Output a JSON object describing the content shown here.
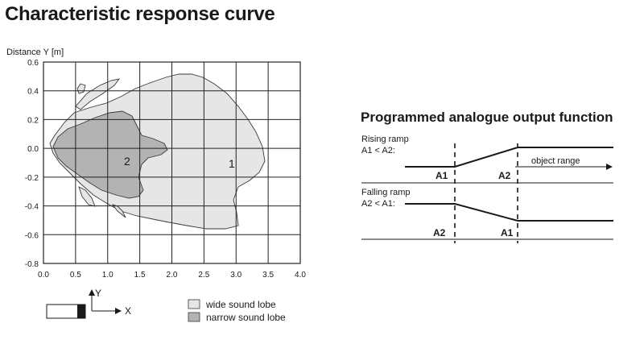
{
  "page_title": "Characteristic response curve",
  "response_chart": {
    "y_axis_label": "Distance Y [m]",
    "x_ticks": [
      "0.0",
      "0.5",
      "1.0",
      "1.5",
      "2.0",
      "2.5",
      "3.0",
      "3.5",
      "4.0"
    ],
    "y_ticks": [
      "0.6",
      "0.4",
      "0.2",
      "0.0",
      "-0.2",
      "-0.4",
      "-0.6",
      "-0.8"
    ],
    "xlim": [
      0,
      4
    ],
    "ylim": [
      -0.8,
      0.6
    ],
    "lobe_labels": {
      "wide": "1",
      "narrow": "2"
    },
    "colors": {
      "wide": "#e6e6e6",
      "narrow": "#b3b3b3",
      "grid": "#222222"
    }
  },
  "sensor_diagram": {
    "x_label": "X",
    "y_label": "Y"
  },
  "legend": [
    {
      "label": "wide sound lobe",
      "color": "#e6e6e6"
    },
    {
      "label": "narrow sound lobe",
      "color": "#b3b3b3"
    }
  ],
  "output_function": {
    "title": "Programmed analogue output function",
    "rising": {
      "line1": "Rising ramp",
      "line2": "A1 < A2:",
      "marker_left": "A1",
      "marker_right": "A2"
    },
    "falling": {
      "line1": "Falling ramp",
      "line2": "A2 < A1:",
      "marker_left": "A2",
      "marker_right": "A1"
    },
    "range_label": "object range"
  }
}
